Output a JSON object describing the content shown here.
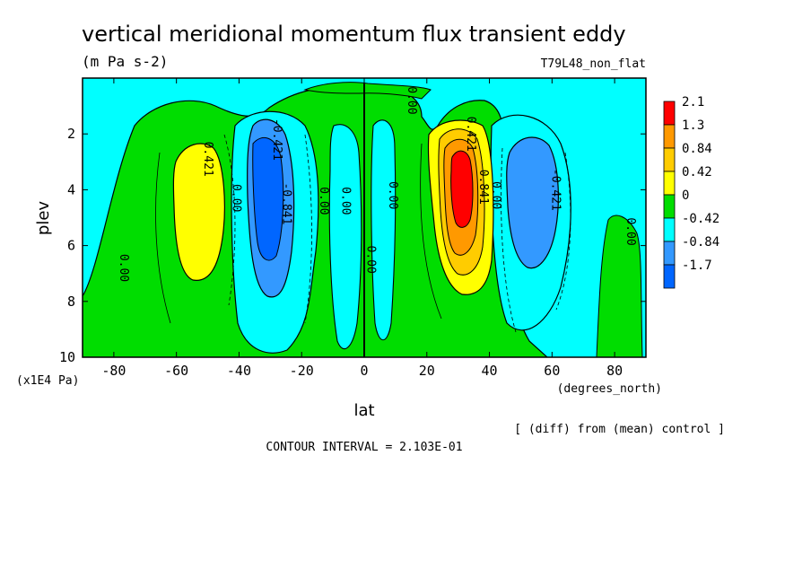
{
  "chart_data": {
    "type": "contour",
    "title": "vertical meridional momentum flux transient eddy",
    "units": "(m Pa s-2)",
    "run_label": "T79L48_non_flat",
    "xlabel": "lat",
    "x_units": "(degrees_north)",
    "ylabel": "plev",
    "y_units": "(x1E4 Pa)",
    "xlim": [
      -90,
      90
    ],
    "ylim": [
      10,
      0
    ],
    "x_ticks": [
      -80,
      -60,
      -40,
      -20,
      0,
      20,
      40,
      60,
      80
    ],
    "y_ticks": [
      2,
      4,
      6,
      8,
      10
    ],
    "contour_interval_text": "CONTOUR INTERVAL = 2.103E-01",
    "diff_note": "[ (diff) from (mean) control ]",
    "background_color": "#00ffff",
    "legend": [
      {
        "label": "2.1",
        "color": "#ff0000"
      },
      {
        "label": "1.3",
        "color": "#ff9900"
      },
      {
        "label": "0.84",
        "color": "#ffcc00"
      },
      {
        "label": "0.42",
        "color": "#ffff00"
      },
      {
        "label": "0",
        "color": "#00dd00"
      },
      {
        "label": "-0.42",
        "color": "#00ffff"
      },
      {
        "label": "-0.84",
        "color": "#3399ff"
      },
      {
        "label": "-1.7",
        "color": "#0066ff"
      }
    ],
    "features": [
      {
        "name": "sh-positive-max",
        "lat": -53,
        "plev": 4.0,
        "approx_value": 0.55,
        "color": "#ffff00"
      },
      {
        "name": "sh-negative-min",
        "lat": -33,
        "plev": 4.5,
        "approx_value": -0.95,
        "color": "#0066ff"
      },
      {
        "name": "nh-positive-max",
        "lat": 31,
        "plev": 3.8,
        "approx_value": 1.6,
        "color": "#ff0000"
      },
      {
        "name": "nh-negative-min",
        "lat": 52,
        "plev": 4.5,
        "approx_value": -0.6,
        "color": "#3399ff"
      }
    ],
    "contour_labels": [
      {
        "text": "0.421",
        "lat": -51,
        "plev": 2.9
      },
      {
        "text": "-0.421",
        "lat": -29,
        "plev": 2.2
      },
      {
        "text": "-0.841",
        "lat": -26,
        "plev": 4.5
      },
      {
        "text": "0.00",
        "lat": -42,
        "plev": 4.3
      },
      {
        "text": "0.00",
        "lat": -14,
        "plev": 4.4
      },
      {
        "text": "0.00",
        "lat": -7,
        "plev": 4.4
      },
      {
        "text": "0.00",
        "lat": 8,
        "plev": 4.2
      },
      {
        "text": "0.00",
        "lat": 1,
        "plev": 6.5
      },
      {
        "text": "0.00",
        "lat": -78,
        "plev": 6.8
      },
      {
        "text": "0.00",
        "lat": 14,
        "plev": 0.8
      },
      {
        "text": "0.421",
        "lat": 33,
        "plev": 2.0
      },
      {
        "text": "0.841",
        "lat": 37,
        "plev": 3.9
      },
      {
        "text": "0.00",
        "lat": 41,
        "plev": 4.2
      },
      {
        "text": "-0.421",
        "lat": 60,
        "plev": 4.0
      },
      {
        "text": "0.00",
        "lat": 84,
        "plev": 5.5
      }
    ]
  }
}
